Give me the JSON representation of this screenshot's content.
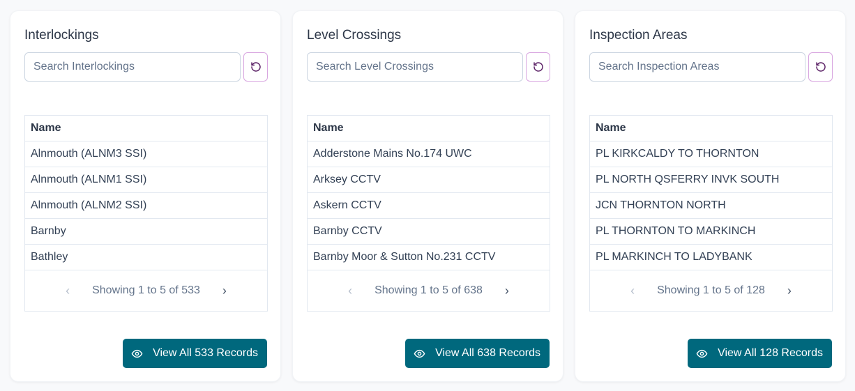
{
  "colors": {
    "primary": "#00687d",
    "reset_border": "#d8a6e0",
    "reset_icon": "#5b2166"
  },
  "icons": {
    "reset": "rotate-ccw-icon",
    "prev": "chevron-left-icon",
    "next": "chevron-right-icon",
    "view": "eye-icon"
  },
  "panels": [
    {
      "title": "Interlockings",
      "search_placeholder": "Search Interlockings",
      "column": "Name",
      "rows": [
        "Alnmouth (ALNM3 SSI)",
        "Alnmouth (ALNM1 SSI)",
        "Alnmouth (ALNM2 SSI)",
        "Barnby",
        "Bathley"
      ],
      "pagination": "Showing 1 to 5 of 533",
      "prev_disabled": true,
      "view_all": "View All 533 Records"
    },
    {
      "title": "Level Crossings",
      "search_placeholder": "Search Level Crossings",
      "column": "Name",
      "rows": [
        "Adderstone Mains No.174 UWC",
        "Arksey CCTV",
        "Askern CCTV",
        "Barnby CCTV",
        "Barnby Moor & Sutton No.231 CCTV"
      ],
      "pagination": "Showing 1 to 5 of 638",
      "prev_disabled": true,
      "view_all": "View All 638 Records"
    },
    {
      "title": "Inspection Areas",
      "search_placeholder": "Search Inspection Areas",
      "column": "Name",
      "rows": [
        "PL KIRKCALDY TO THORNTON",
        "PL NORTH QSFERRY INVK SOUTH",
        "JCN THORNTON NORTH",
        "PL THORNTON TO MARKINCH",
        "PL MARKINCH TO LADYBANK"
      ],
      "pagination": "Showing 1 to 5 of 128",
      "prev_disabled": true,
      "view_all": "View All 128 Records"
    }
  ]
}
